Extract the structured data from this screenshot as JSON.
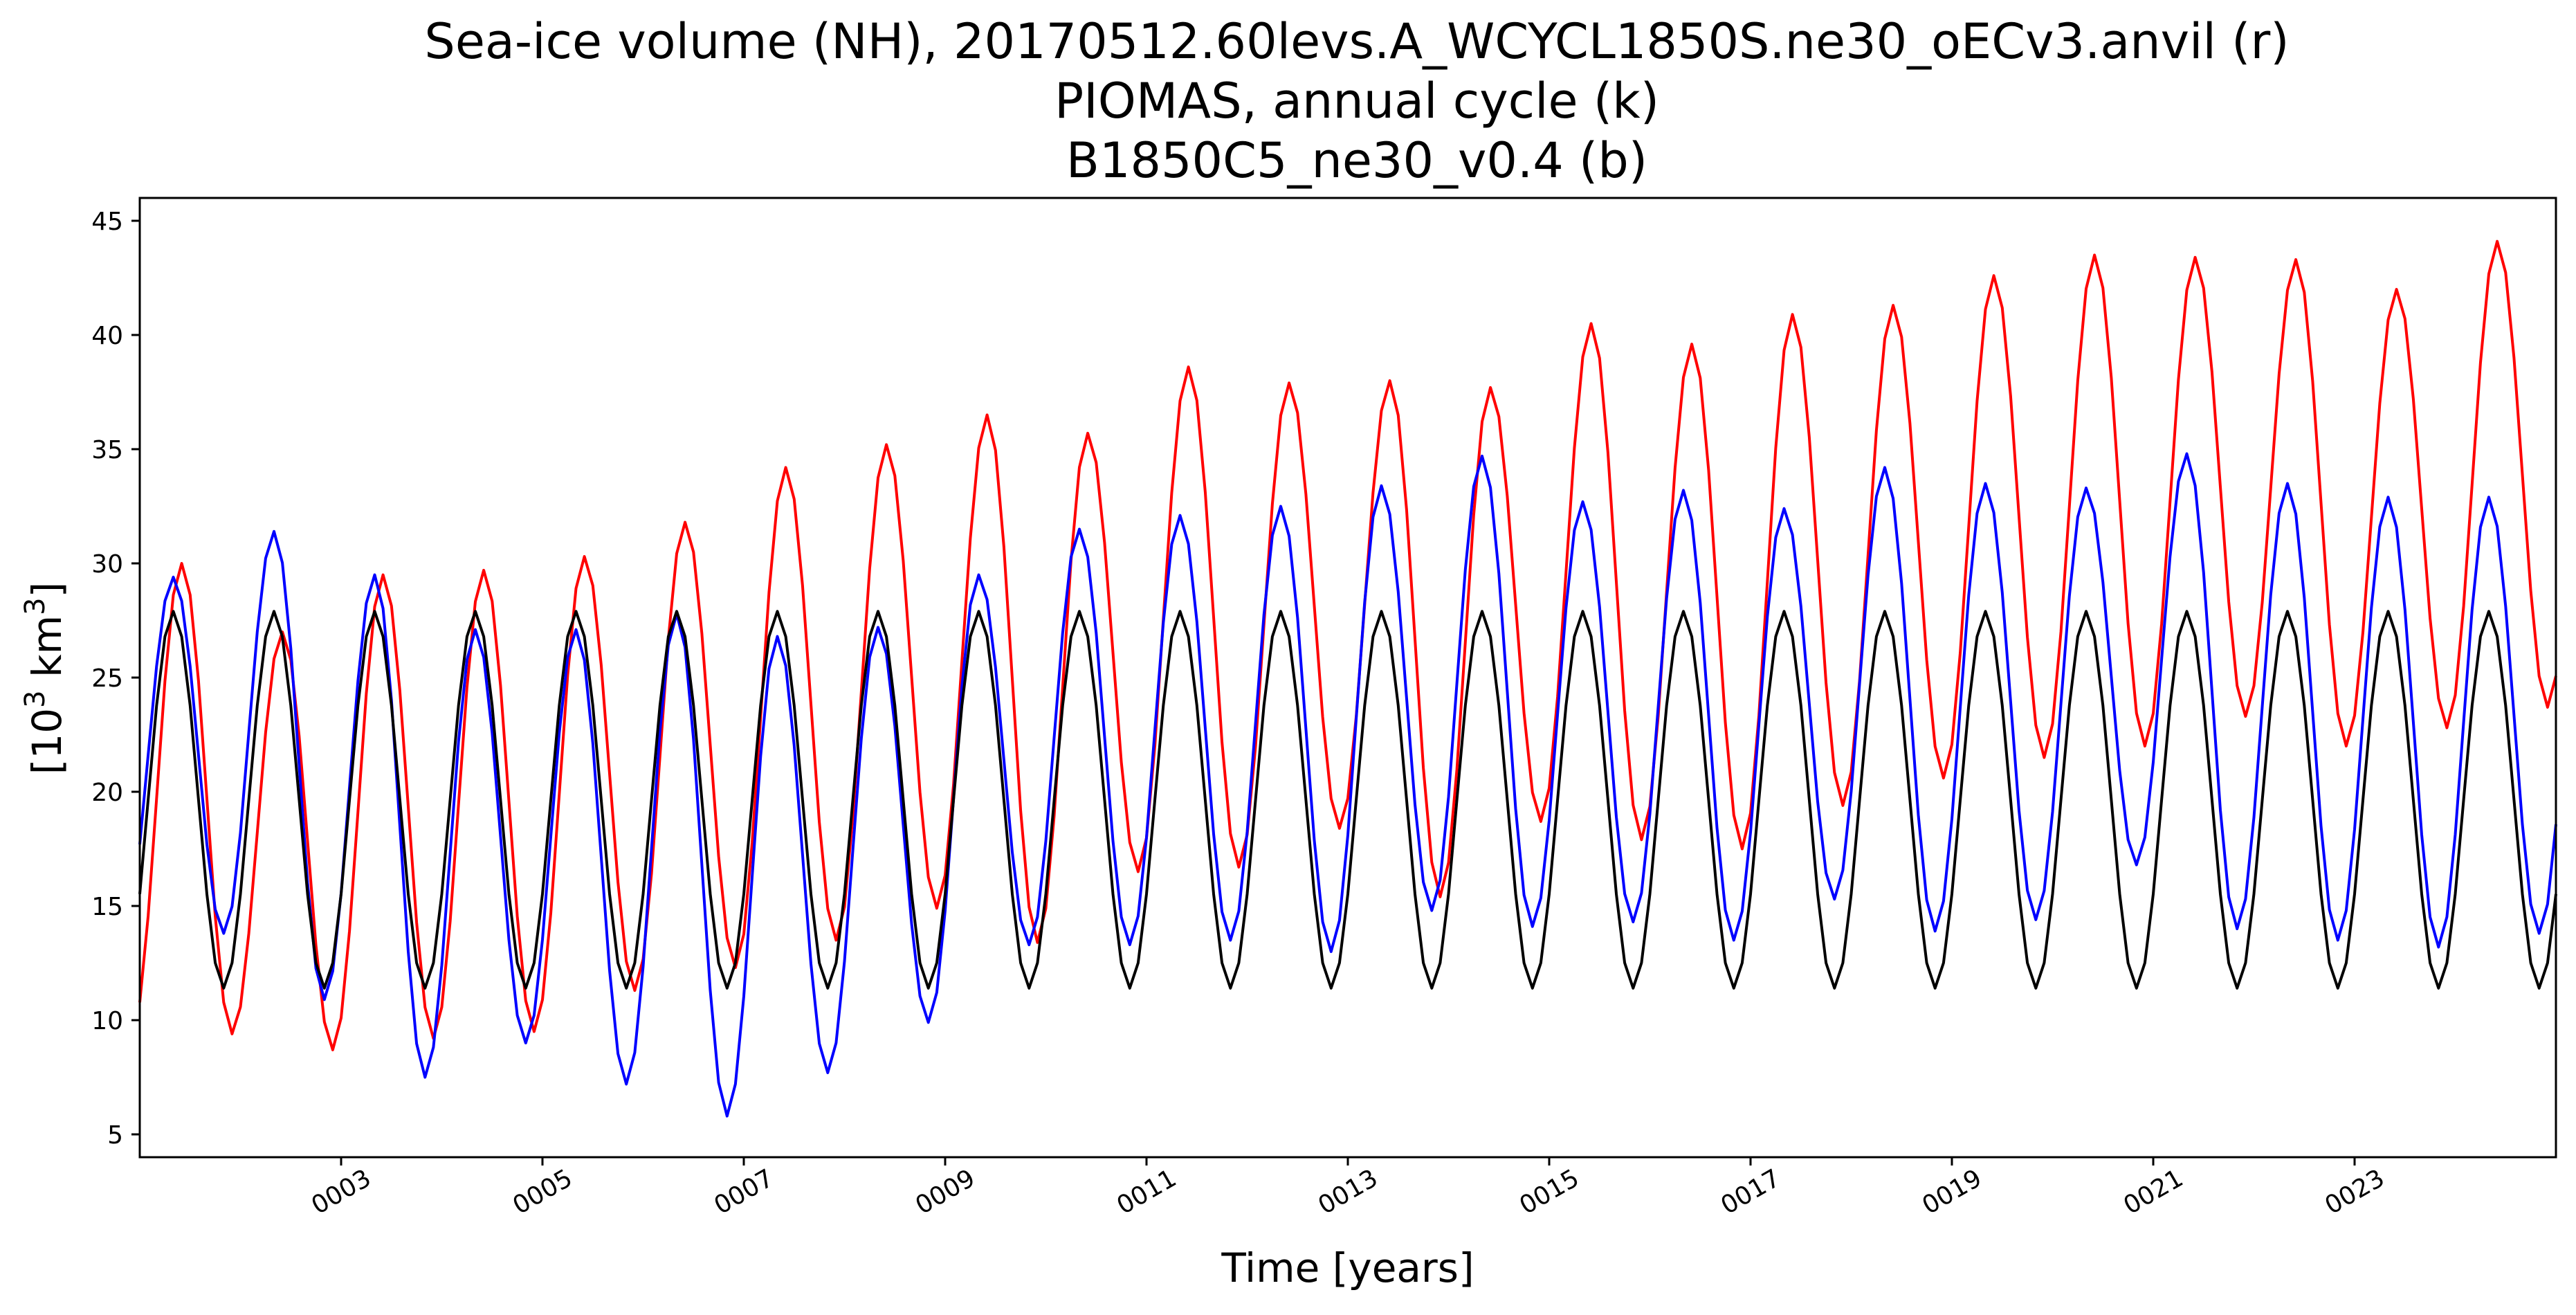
{
  "chart_data": {
    "type": "line",
    "title": [
      "Sea-ice volume (NH), 20170512.60levs.A_WCYCL1850S.ne30_oECv3.anvil (r)",
      "PIOMAS, annual cycle (k)",
      "B1850C5_ne30_v0.4 (b)"
    ],
    "xlabel": "Time [years]",
    "ylabel_parts": [
      "[10",
      "3",
      " km",
      "3",
      "]"
    ],
    "xlim": [
      1.0,
      25.0
    ],
    "ylim": [
      4,
      46
    ],
    "x_ticks": [
      3,
      5,
      7,
      9,
      11,
      13,
      15,
      17,
      19,
      21,
      23
    ],
    "x_tick_labels": [
      "0003",
      "0005",
      "0007",
      "0009",
      "0011",
      "0013",
      "0015",
      "0017",
      "0019",
      "0021",
      "0023"
    ],
    "y_ticks": [
      5,
      10,
      15,
      20,
      25,
      30,
      35,
      40,
      45
    ],
    "y_tick_labels": [
      "5",
      "10",
      "15",
      "20",
      "25",
      "30",
      "35",
      "40",
      "45"
    ],
    "grid": false,
    "legend": "none",
    "samples_per_year": 12,
    "series": [
      {
        "color": "#ff0000",
        "annual_max": [
          30.0,
          27.0,
          29.5,
          29.7,
          30.3,
          31.8,
          34.2,
          35.2,
          36.5,
          35.7,
          38.6,
          37.9,
          38.0,
          37.7,
          40.5,
          39.6,
          40.9,
          41.3,
          42.6,
          43.5,
          43.4,
          43.3,
          42.0,
          44.1
        ],
        "annual_min": [
          9.4,
          8.7,
          9.2,
          9.5,
          11.3,
          12.3,
          13.5,
          14.9,
          13.4,
          16.5,
          16.7,
          18.4,
          15.4,
          18.7,
          17.9,
          17.5,
          19.4,
          20.6,
          21.5,
          22.0,
          23.3,
          22.0,
          22.8,
          23.7
        ],
        "max_month": 5,
        "min_month": 11
      },
      {
        "color": "#0000ff",
        "annual_max": [
          29.4,
          31.4,
          29.5,
          27.1,
          27.1,
          27.8,
          26.8,
          27.2,
          29.5,
          31.5,
          32.1,
          32.5,
          33.4,
          34.7,
          32.7,
          33.2,
          32.4,
          34.2,
          33.5,
          33.3,
          34.8,
          33.5,
          32.9,
          32.9
        ],
        "annual_min": [
          13.8,
          10.9,
          7.5,
          9.0,
          7.2,
          5.8,
          7.7,
          9.9,
          13.3,
          13.3,
          13.5,
          13.0,
          14.8,
          14.1,
          14.3,
          13.5,
          15.3,
          13.9,
          14.4,
          16.8,
          14.0,
          13.5,
          13.2,
          13.8
        ],
        "max_month": 4,
        "min_month": 10
      },
      {
        "color": "#000000",
        "annual_max": [
          27.9,
          27.9,
          27.9,
          27.9,
          27.9,
          27.9,
          27.9,
          27.9,
          27.9,
          27.9,
          27.9,
          27.9,
          27.9,
          27.9,
          27.9,
          27.9,
          27.9,
          27.9,
          27.9,
          27.9,
          27.9,
          27.9,
          27.9,
          27.9
        ],
        "annual_min": [
          11.4,
          11.4,
          11.4,
          11.4,
          11.4,
          11.4,
          11.4,
          11.4,
          11.4,
          11.4,
          11.4,
          11.4,
          11.4,
          11.4,
          11.4,
          11.4,
          11.4,
          11.4,
          11.4,
          11.4,
          11.4,
          11.4,
          11.4,
          11.4
        ],
        "max_month": 4,
        "min_month": 10
      }
    ]
  }
}
